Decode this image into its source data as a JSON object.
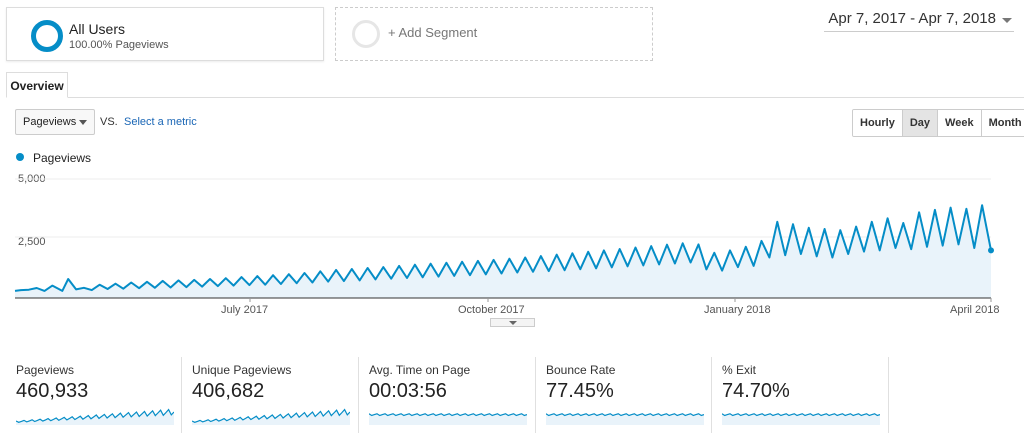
{
  "segments": {
    "active_title": "All Users",
    "active_sub": "100.00% Pageviews",
    "add_label": "+ Add Segment"
  },
  "date_range": "Apr 7, 2017 - Apr 7, 2018",
  "tabs": {
    "overview": "Overview"
  },
  "controls": {
    "metric_selected": "Pageviews",
    "vs_label": "VS.",
    "select_metric_link": "Select a metric",
    "granularity": [
      "Hourly",
      "Day",
      "Week",
      "Month"
    ],
    "granularity_active": "Day"
  },
  "colors": {
    "series": "#058dc7",
    "fill": "#e9f3fa"
  },
  "chart_data": {
    "type": "line",
    "series": [
      {
        "name": "Pageviews",
        "values": [
          [
            0,
            300
          ],
          [
            6,
            330
          ],
          [
            14,
            350
          ],
          [
            22,
            420
          ],
          [
            30,
            300
          ],
          [
            38,
            520
          ],
          [
            48,
            300
          ],
          [
            54,
            800
          ],
          [
            62,
            360
          ],
          [
            70,
            430
          ],
          [
            78,
            330
          ],
          [
            86,
            560
          ],
          [
            94,
            380
          ],
          [
            102,
            600
          ],
          [
            110,
            390
          ],
          [
            118,
            650
          ],
          [
            126,
            410
          ],
          [
            134,
            680
          ],
          [
            142,
            430
          ],
          [
            150,
            720
          ],
          [
            158,
            440
          ],
          [
            166,
            740
          ],
          [
            174,
            460
          ],
          [
            182,
            760
          ],
          [
            190,
            480
          ],
          [
            198,
            800
          ],
          [
            206,
            500
          ],
          [
            214,
            830
          ],
          [
            222,
            520
          ],
          [
            230,
            880
          ],
          [
            238,
            540
          ],
          [
            246,
            920
          ],
          [
            254,
            560
          ],
          [
            262,
            960
          ],
          [
            270,
            590
          ],
          [
            278,
            1000
          ],
          [
            286,
            620
          ],
          [
            294,
            1050
          ],
          [
            302,
            650
          ],
          [
            310,
            1120
          ],
          [
            318,
            690
          ],
          [
            326,
            1180
          ],
          [
            334,
            710
          ],
          [
            342,
            1220
          ],
          [
            350,
            740
          ],
          [
            358,
            1260
          ],
          [
            366,
            780
          ],
          [
            374,
            1300
          ],
          [
            382,
            810
          ],
          [
            390,
            1350
          ],
          [
            398,
            840
          ],
          [
            406,
            1400
          ],
          [
            414,
            870
          ],
          [
            422,
            1440
          ],
          [
            430,
            900
          ],
          [
            438,
            1480
          ],
          [
            446,
            930
          ],
          [
            454,
            1520
          ],
          [
            462,
            960
          ],
          [
            470,
            1560
          ],
          [
            478,
            990
          ],
          [
            486,
            1600
          ],
          [
            494,
            1030
          ],
          [
            502,
            1650
          ],
          [
            510,
            1070
          ],
          [
            518,
            1700
          ],
          [
            526,
            1100
          ],
          [
            534,
            1760
          ],
          [
            542,
            1130
          ],
          [
            550,
            1820
          ],
          [
            558,
            1170
          ],
          [
            566,
            1880
          ],
          [
            574,
            1210
          ],
          [
            582,
            1940
          ],
          [
            590,
            1250
          ],
          [
            598,
            2000
          ],
          [
            606,
            1290
          ],
          [
            614,
            2060
          ],
          [
            622,
            1330
          ],
          [
            630,
            2120
          ],
          [
            638,
            1370
          ],
          [
            646,
            2180
          ],
          [
            654,
            1410
          ],
          [
            662,
            2240
          ],
          [
            670,
            1450
          ],
          [
            678,
            2300
          ],
          [
            686,
            1490
          ],
          [
            694,
            2250
          ],
          [
            702,
            1200
          ],
          [
            710,
            1900
          ],
          [
            718,
            1150
          ],
          [
            726,
            2000
          ],
          [
            734,
            1300
          ],
          [
            742,
            2150
          ],
          [
            750,
            1350
          ],
          [
            758,
            2400
          ],
          [
            766,
            1700
          ],
          [
            774,
            3200
          ],
          [
            782,
            1800
          ],
          [
            790,
            3100
          ],
          [
            798,
            1850
          ],
          [
            806,
            2950
          ],
          [
            814,
            1750
          ],
          [
            822,
            2900
          ],
          [
            830,
            1700
          ],
          [
            838,
            2850
          ],
          [
            846,
            1850
          ],
          [
            854,
            3000
          ],
          [
            862,
            1950
          ],
          [
            870,
            3200
          ],
          [
            878,
            2000
          ],
          [
            886,
            3350
          ],
          [
            894,
            2100
          ],
          [
            902,
            3150
          ],
          [
            910,
            2050
          ],
          [
            918,
            3600
          ],
          [
            926,
            2150
          ],
          [
            934,
            3700
          ],
          [
            942,
            2200
          ],
          [
            950,
            3800
          ],
          [
            958,
            2250
          ],
          [
            966,
            3750
          ],
          [
            974,
            2100
          ],
          [
            982,
            3900
          ],
          [
            991,
            2000
          ]
        ]
      }
    ],
    "ylim": [
      0,
      5000
    ],
    "y_ticks": [
      "5,000",
      "2,500"
    ],
    "x_ticks": [
      "July 2017",
      "October 2017",
      "January 2018",
      "April 2018"
    ]
  },
  "stats": [
    {
      "name": "Pageviews",
      "value": "460,933",
      "trend": "up"
    },
    {
      "name": "Unique Pageviews",
      "value": "406,682",
      "trend": "up"
    },
    {
      "name": "Avg. Time on Page",
      "value": "00:03:56",
      "trend": "flat"
    },
    {
      "name": "Bounce Rate",
      "value": "77.45%",
      "trend": "flat"
    },
    {
      "name": "% Exit",
      "value": "74.70%",
      "trend": "flat"
    }
  ]
}
